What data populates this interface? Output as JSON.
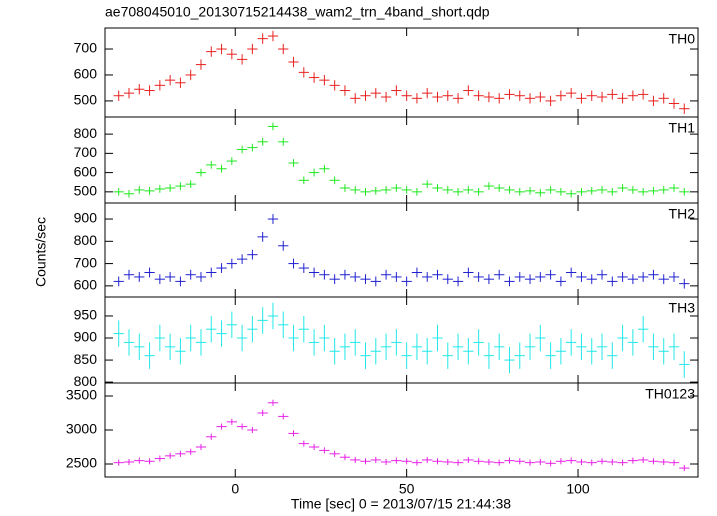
{
  "chart_data": {
    "type": "line",
    "title": "ae708045010_20130715214438_wam2_trn_4band_short.qdp",
    "xlabel": "Time [sec] 0 = 2013/07/15 21:44:38",
    "ylabel": "Counts/sec",
    "x": [
      -34,
      -31,
      -28,
      -25,
      -22,
      -19,
      -16,
      -13,
      -10,
      -7,
      -4,
      -1,
      2,
      5,
      8,
      11,
      14,
      17,
      20,
      23,
      26,
      29,
      32,
      35,
      38,
      41,
      44,
      47,
      50,
      53,
      56,
      59,
      62,
      65,
      68,
      71,
      74,
      77,
      80,
      83,
      86,
      89,
      92,
      95,
      98,
      101,
      104,
      107,
      110,
      113,
      116,
      119,
      122,
      125,
      128,
      131
    ],
    "xlim": [
      -38,
      135
    ],
    "xticks": [
      0,
      50,
      100
    ],
    "panels": [
      {
        "name": "TH0",
        "color": "#e8211f",
        "error": 20,
        "ylim": [
          438,
          781
        ],
        "yticks": [
          500,
          600,
          700
        ],
        "values": [
          520,
          530,
          545,
          540,
          560,
          580,
          570,
          600,
          640,
          690,
          700,
          680,
          660,
          700,
          740,
          750,
          700,
          650,
          610,
          590,
          580,
          560,
          540,
          510,
          520,
          530,
          515,
          540,
          520,
          510,
          530,
          515,
          520,
          510,
          540,
          520,
          515,
          510,
          525,
          520,
          510,
          515,
          500,
          520,
          530,
          510,
          520,
          515,
          525,
          510,
          520,
          525,
          500,
          510,
          490,
          470
        ]
      },
      {
        "name": "TH1",
        "color": "#1fe81f",
        "error": 20,
        "ylim": [
          442,
          889
        ],
        "yticks": [
          500,
          600,
          700,
          800
        ],
        "values": [
          500,
          490,
          510,
          505,
          515,
          520,
          530,
          540,
          600,
          640,
          620,
          660,
          720,
          730,
          760,
          840,
          760,
          650,
          560,
          600,
          620,
          560,
          520,
          510,
          500,
          505,
          510,
          520,
          510,
          500,
          540,
          520,
          510,
          500,
          510,
          500,
          530,
          520,
          510,
          500,
          505,
          495,
          510,
          500,
          490,
          500,
          505,
          510,
          500,
          520,
          510,
          500,
          505,
          510,
          520,
          500
        ]
      },
      {
        "name": "TH2",
        "color": "#2121d0",
        "error": 22,
        "ylim": [
          550,
          972
        ],
        "yticks": [
          600,
          700,
          800,
          900
        ],
        "values": [
          620,
          650,
          640,
          660,
          630,
          640,
          620,
          650,
          640,
          660,
          680,
          700,
          720,
          740,
          820,
          900,
          780,
          700,
          680,
          660,
          650,
          630,
          650,
          640,
          630,
          620,
          650,
          640,
          620,
          660,
          640,
          650,
          630,
          620,
          660,
          640,
          630,
          650,
          620,
          640,
          630,
          640,
          650,
          620,
          660,
          640,
          630,
          650,
          620,
          640,
          630,
          640,
          650,
          630,
          640,
          610
        ]
      },
      {
        "name": "TH3",
        "color": "#21e8e8",
        "error": 30,
        "ylim": [
          798,
          993
        ],
        "yticks": [
          800,
          850,
          900,
          950
        ],
        "values": [
          910,
          890,
          880,
          860,
          900,
          880,
          870,
          900,
          890,
          920,
          910,
          930,
          900,
          920,
          940,
          950,
          930,
          900,
          920,
          890,
          900,
          870,
          880,
          890,
          860,
          870,
          880,
          890,
          860,
          880,
          870,
          900,
          860,
          880,
          870,
          890,
          860,
          880,
          850,
          860,
          880,
          900,
          860,
          870,
          890,
          880,
          870,
          880,
          860,
          900,
          890,
          920,
          880,
          870,
          880,
          840
        ]
      },
      {
        "name": "TH0123",
        "color": "#e821e8",
        "error": 45,
        "ylim": [
          2309,
          3691
        ],
        "yticks": [
          2500,
          3000,
          3500
        ],
        "values": [
          2520,
          2530,
          2550,
          2540,
          2580,
          2620,
          2650,
          2680,
          2750,
          2900,
          3050,
          3120,
          3050,
          3000,
          3250,
          3400,
          3200,
          2950,
          2800,
          2750,
          2700,
          2650,
          2600,
          2560,
          2540,
          2560,
          2530,
          2550,
          2540,
          2520,
          2560,
          2540,
          2530,
          2520,
          2560,
          2540,
          2530,
          2520,
          2550,
          2540,
          2520,
          2530,
          2510,
          2540,
          2550,
          2530,
          2520,
          2540,
          2530,
          2520,
          2550,
          2560,
          2540,
          2530,
          2520,
          2440
        ]
      }
    ]
  }
}
